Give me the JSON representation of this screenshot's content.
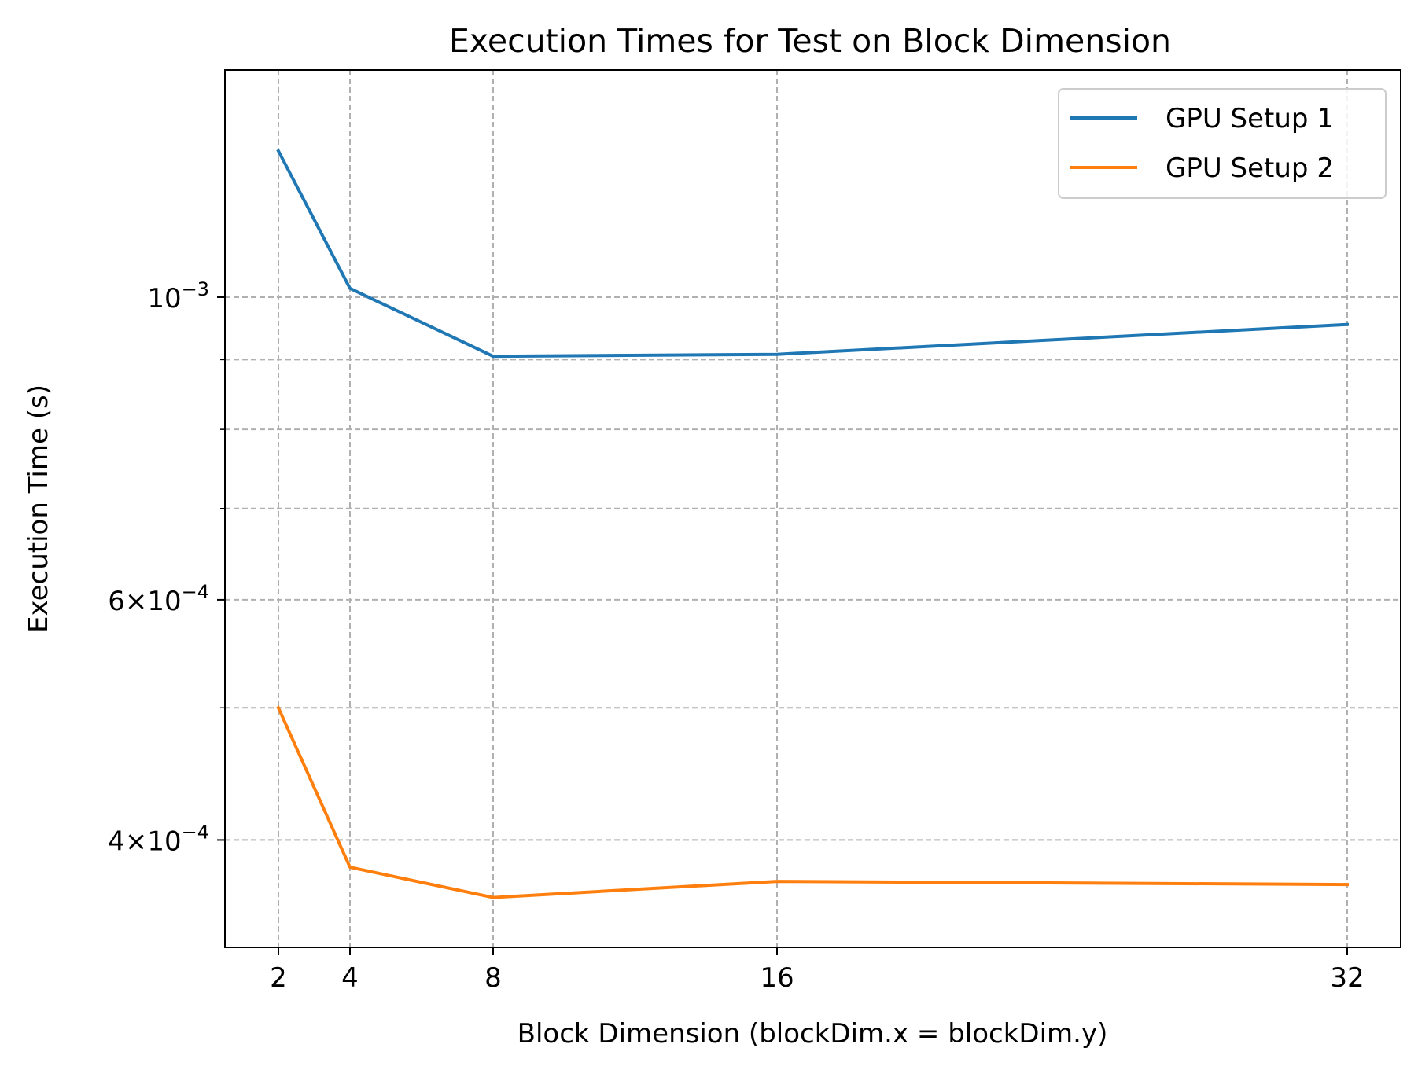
{
  "chart_data": {
    "type": "line",
    "title": "Execution Times for Test on Block Dimension",
    "xlabel": "Block Dimension (blockDim.x = blockDim.y)",
    "ylabel": "Execution Time (s)",
    "x": [
      2,
      4,
      8,
      16,
      32
    ],
    "xticks": [
      "2",
      "4",
      "8",
      "16",
      "32"
    ],
    "yscale": "log",
    "ylim": [
      0.00035,
      0.00133
    ],
    "yticks": [
      {
        "value": 0.001,
        "base": "10",
        "exp": "−3",
        "prefix": ""
      },
      {
        "value": 0.0006,
        "base": "10",
        "exp": "−4",
        "prefix": "6×"
      },
      {
        "value": 0.0004,
        "base": "10",
        "exp": "−4",
        "prefix": "4×"
      }
    ],
    "minor_grid_y": [
      0.0005,
      0.0007,
      0.0008,
      0.0009
    ],
    "grid": true,
    "legend_position": "top-right",
    "series": [
      {
        "name": "GPU Setup 1",
        "color": "#1f77b4",
        "values": [
          0.00128,
          0.001015,
          0.000905,
          0.000908,
          0.000955
        ]
      },
      {
        "name": "GPU Setup 2",
        "color": "#ff7f0e",
        "values": [
          0.0005,
          0.000382,
          0.000363,
          0.000373,
          0.000371
        ]
      }
    ]
  }
}
